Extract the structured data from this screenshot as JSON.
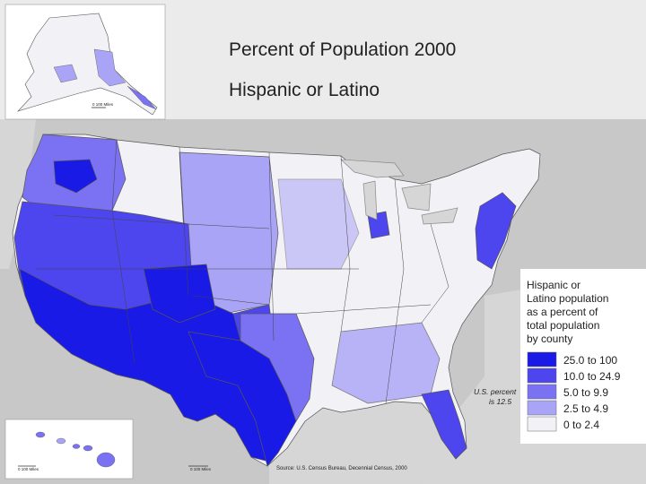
{
  "title": "Percent of Population 2000",
  "subtitle": "Hispanic or Latino",
  "legend": {
    "heading": [
      "Hispanic or",
      "Latino population",
      "as a percent of",
      "total population",
      "by county"
    ],
    "classes": [
      {
        "label": "25.0 to 100",
        "color": "#1a1ae6"
      },
      {
        "label": "10.0 to 24.9",
        "color": "#4d45ee"
      },
      {
        "label": "5.0 to 9.9",
        "color": "#7b72f3"
      },
      {
        "label": "2.5 to 4.9",
        "color": "#aaa4f7"
      },
      {
        "label": "0 to 2.4",
        "color": "#f2f2f6"
      }
    ]
  },
  "us_percent": [
    "U.S. percent",
    "is 12.5"
  ],
  "scales": {
    "alaska": "0   100 Miles",
    "hawaii": "0   100 Miles",
    "mainland": "0   100 Miles"
  },
  "source": "Source:  U.S. Census Bureau, Decennial Census, 2000",
  "colors": {
    "background_gray": "#c8c8c8",
    "ocean_gray": "#d4d4d4",
    "state_border": "#555555"
  },
  "map_regions": [
    {
      "name": "southwest-border-counties",
      "level": "25.0 to 100"
    },
    {
      "name": "texas-south",
      "level": "25.0 to 100"
    },
    {
      "name": "west-interior",
      "level": "10.0 to 24.9"
    },
    {
      "name": "pacific-northwest",
      "level": "5.0 to 9.9"
    },
    {
      "name": "great-plains",
      "level": "2.5 to 4.9"
    },
    {
      "name": "east-interior",
      "level": "0 to 2.4"
    },
    {
      "name": "florida",
      "level": "10.0 to 24.9"
    },
    {
      "name": "northeast-corridor",
      "level": "10.0 to 24.9"
    }
  ]
}
